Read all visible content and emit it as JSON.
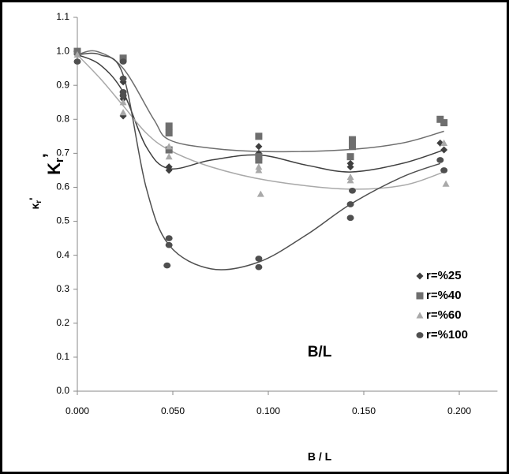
{
  "chart_data": {
    "type": "scatter",
    "annotation": "B/L",
    "xlabel": "B / L",
    "ylabel_large": {
      "main": "K",
      "subscript": "r",
      "mark": "’"
    },
    "ylabel_small": {
      "main": "κ",
      "subscript": "r",
      "mark": "'"
    },
    "xlim": [
      0,
      0.22
    ],
    "ylim": [
      0,
      1.1
    ],
    "xticks": [
      {
        "value": 0,
        "label": "0.000"
      },
      {
        "value": 0.05,
        "label": "0.050"
      },
      {
        "value": 0.1,
        "label": "0.100"
      },
      {
        "value": 0.15,
        "label": "0.150"
      },
      {
        "value": 0.2,
        "label": "0.200"
      }
    ],
    "yticks": [
      {
        "value": 0,
        "label": "0.0"
      },
      0.1,
      0.2,
      0.3,
      0.4,
      0.5,
      0.6,
      0.7,
      0.8,
      0.9,
      {
        "value": 1,
        "label": "1.0"
      },
      1.1
    ],
    "grid": false,
    "legend": "right",
    "series": [
      {
        "name": "r=%25",
        "color": "#3f3f3f",
        "marker": "diamond",
        "x": [
          0,
          0.024,
          0.024,
          0.024,
          0.048,
          0.048,
          0.095,
          0.095,
          0.143,
          0.143,
          0.19,
          0.192
        ],
        "values": [
          0.99,
          0.81,
          0.86,
          0.91,
          0.66,
          0.65,
          0.72,
          0.7,
          0.66,
          0.67,
          0.73,
          0.71
        ],
        "trend_x": [
          0,
          0.012,
          0.024,
          0.036,
          0.048,
          0.07,
          0.095,
          0.12,
          0.143,
          0.17,
          0.192
        ],
        "trend_y": [
          0.99,
          0.96,
          0.88,
          0.72,
          0.655,
          0.68,
          0.695,
          0.665,
          0.645,
          0.67,
          0.71
        ]
      },
      {
        "name": "r=%40",
        "color": "#6e6e6e",
        "marker": "square",
        "x": [
          0,
          0.024,
          0.048,
          0.048,
          0.048,
          0.095,
          0.095,
          0.095,
          0.143,
          0.144,
          0.144,
          0.19,
          0.192
        ],
        "values": [
          1.0,
          0.98,
          0.78,
          0.76,
          0.71,
          0.75,
          0.68,
          0.69,
          0.69,
          0.72,
          0.74,
          0.8,
          0.79
        ],
        "trend_x": [
          0,
          0.01,
          0.024,
          0.04,
          0.048,
          0.07,
          0.1,
          0.14,
          0.17,
          0.192
        ],
        "trend_y": [
          0.99,
          1.0,
          0.95,
          0.8,
          0.74,
          0.715,
          0.705,
          0.71,
          0.73,
          0.765
        ]
      },
      {
        "name": "r=%60",
        "color": "#a9a9a9",
        "marker": "triangle",
        "x": [
          0,
          0.024,
          0.024,
          0.048,
          0.048,
          0.095,
          0.095,
          0.096,
          0.143,
          0.143,
          0.192,
          0.193
        ],
        "values": [
          0.99,
          0.82,
          0.85,
          0.69,
          0.72,
          0.66,
          0.65,
          0.58,
          0.62,
          0.63,
          0.73,
          0.61
        ],
        "trend_x": [
          0,
          0.012,
          0.024,
          0.036,
          0.048,
          0.07,
          0.1,
          0.14,
          0.17,
          0.192
        ],
        "trend_y": [
          0.99,
          0.92,
          0.84,
          0.76,
          0.71,
          0.66,
          0.62,
          0.595,
          0.605,
          0.645
        ]
      },
      {
        "name": "r=%100",
        "color": "#4f4f4f",
        "marker": "circle",
        "x": [
          0,
          0.024,
          0.024,
          0.024,
          0.024,
          0.048,
          0.048,
          0.047,
          0.095,
          0.095,
          0.143,
          0.143,
          0.144,
          0.19,
          0.192
        ],
        "values": [
          0.97,
          0.97,
          0.92,
          0.88,
          0.87,
          0.45,
          0.43,
          0.37,
          0.39,
          0.365,
          0.51,
          0.55,
          0.59,
          0.68,
          0.65
        ],
        "trend_x": [
          0,
          0.012,
          0.024,
          0.036,
          0.048,
          0.07,
          0.095,
          0.12,
          0.143,
          0.17,
          0.19
        ],
        "trend_y": [
          0.99,
          0.99,
          0.93,
          0.6,
          0.43,
          0.36,
          0.38,
          0.46,
          0.55,
          0.63,
          0.67
        ]
      }
    ]
  }
}
